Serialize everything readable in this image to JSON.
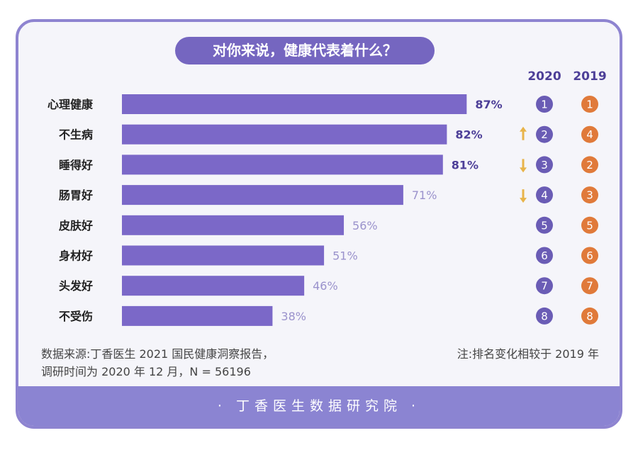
{
  "title": "对你来说，健康代表着什么？",
  "footer": "· 丁香医生数据研究院 ·",
  "source_line1": "数据来源:丁香医生 2021 国民健康洞察报告，",
  "source_line2": "调研时间为 2020 年 12 月，N = 56196",
  "note": "注:排名变化相较于 2019 年",
  "rank_headers": [
    "2020",
    "2019"
  ],
  "colors": {
    "bar": "#7b68c8",
    "rank2020": "#6a5cb5",
    "rank2019": "#e07a3a",
    "arrow": "#e8b44a"
  },
  "chart_data": {
    "type": "bar",
    "orientation": "horizontal",
    "title": "对你来说，健康代表着什么？",
    "categories": [
      "心理健康",
      "不生病",
      "睡得好",
      "肠胃好",
      "皮肤好",
      "身材好",
      "头发好",
      "不受伤"
    ],
    "values": [
      87,
      82,
      81,
      71,
      56,
      51,
      46,
      38
    ],
    "value_labels": [
      "87%",
      "82%",
      "81%",
      "71%",
      "56%",
      "51%",
      "46%",
      "38%"
    ],
    "rank_2020": [
      1,
      2,
      3,
      4,
      5,
      6,
      7,
      8
    ],
    "rank_2019": [
      1,
      4,
      2,
      3,
      5,
      6,
      7,
      8
    ],
    "rank_change": [
      "",
      "up",
      "down",
      "down",
      "",
      "",
      "",
      ""
    ]
  }
}
